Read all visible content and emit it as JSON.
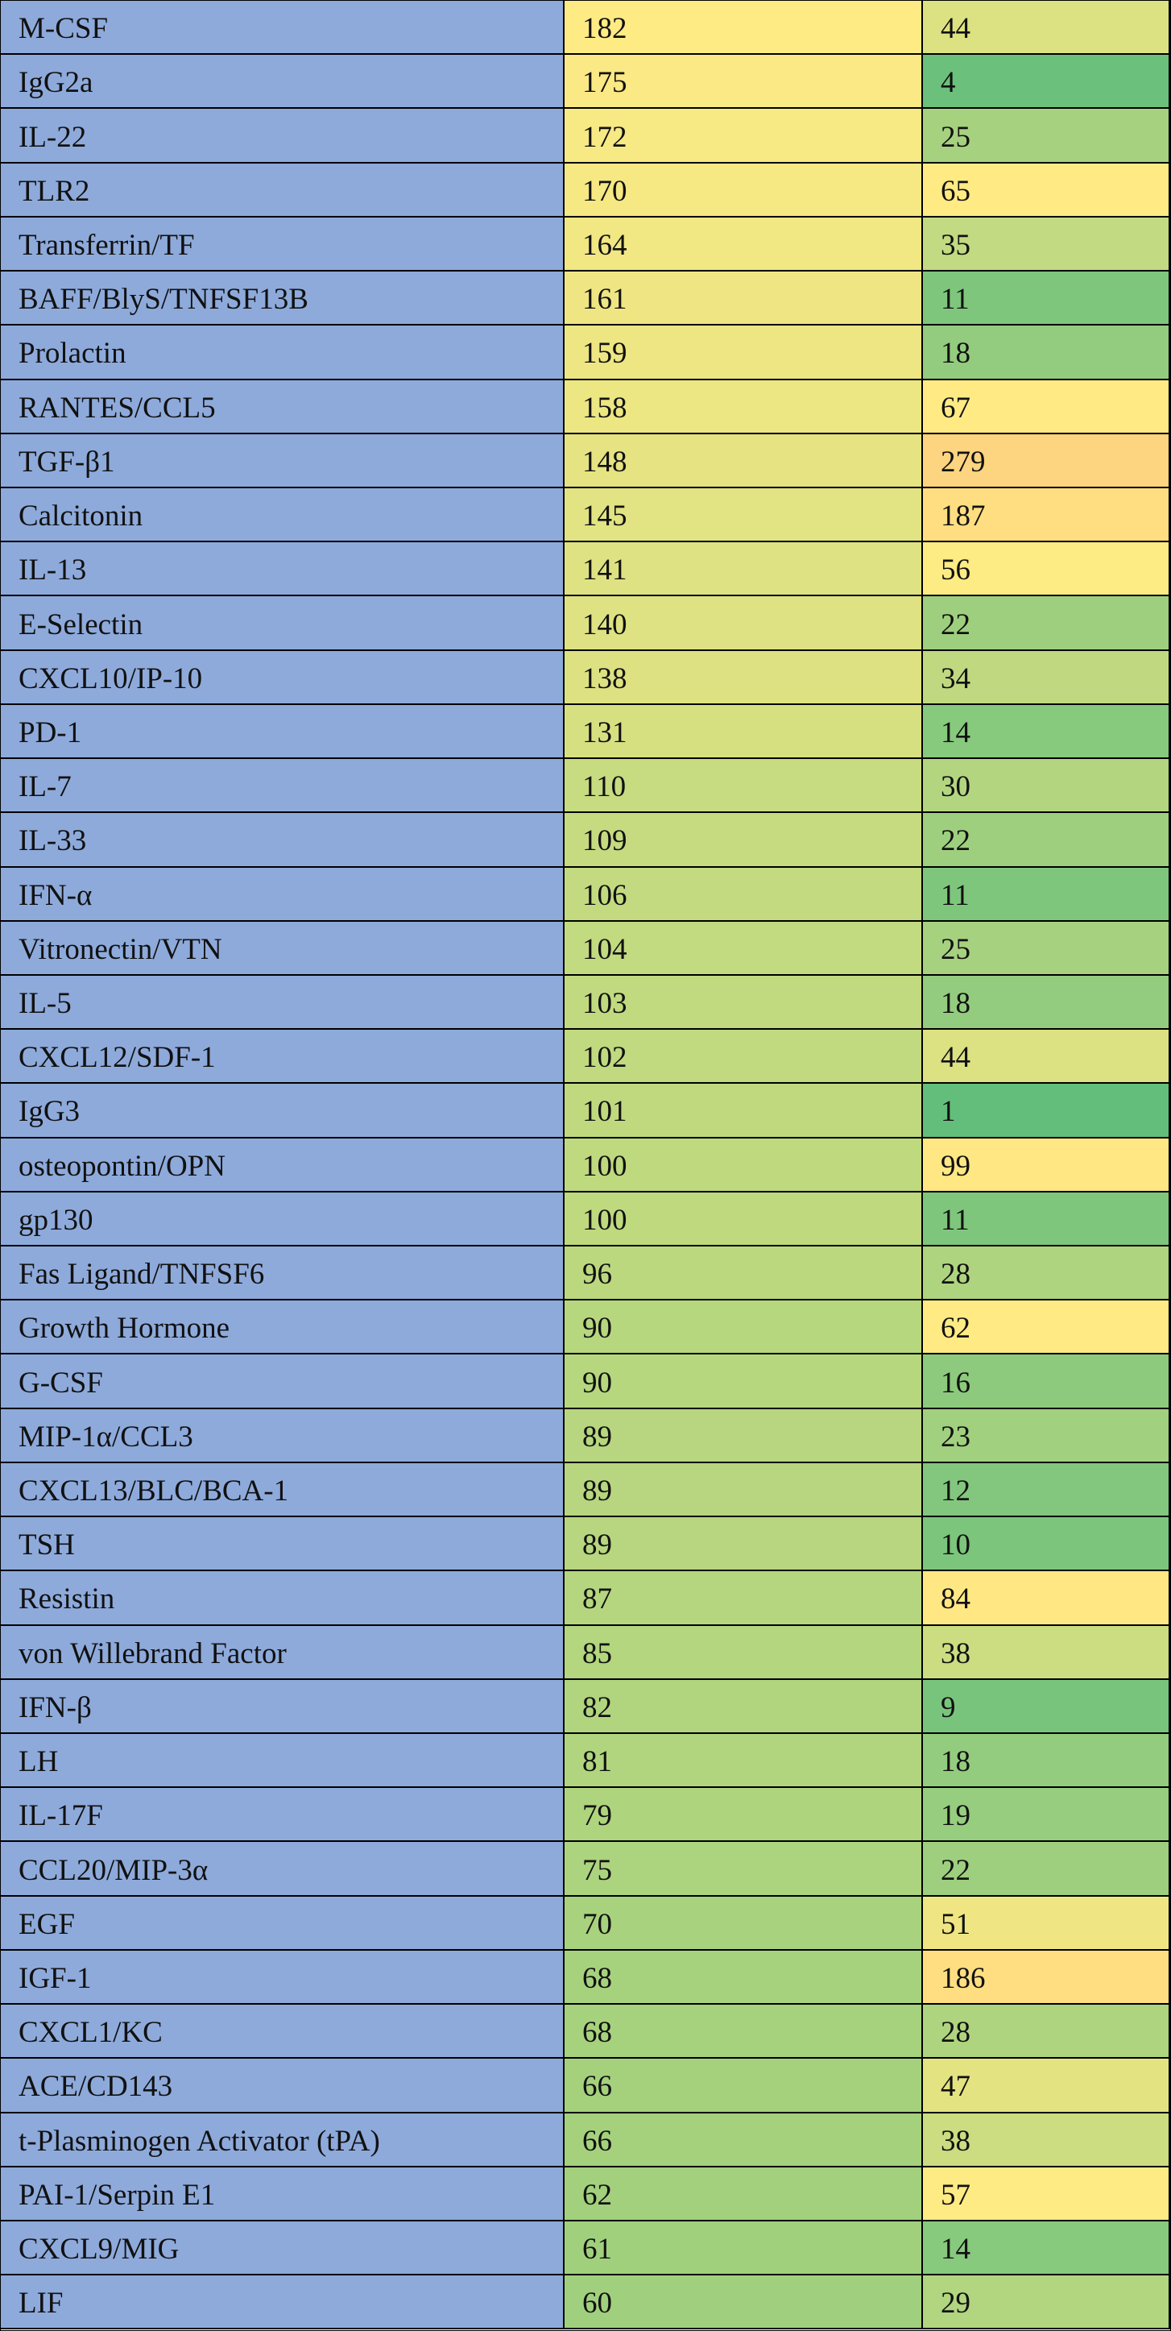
{
  "table": {
    "rows": [
      [
        "M-CSF",
        182,
        44
      ],
      [
        "IgG2a",
        175,
        4
      ],
      [
        "IL-22",
        172,
        25
      ],
      [
        "TLR2",
        170,
        65
      ],
      [
        "Transferrin/TF",
        164,
        35
      ],
      [
        "BAFF/BlyS/TNFSF13B",
        161,
        11
      ],
      [
        "Prolactin",
        159,
        18
      ],
      [
        "RANTES/CCL5",
        158,
        67
      ],
      [
        "TGF-β1",
        148,
        279
      ],
      [
        "Calcitonin",
        145,
        187
      ],
      [
        "IL-13",
        141,
        56
      ],
      [
        "E-Selectin",
        140,
        22
      ],
      [
        "CXCL10/IP-10",
        138,
        34
      ],
      [
        "PD-1",
        131,
        14
      ],
      [
        "IL-7",
        110,
        30
      ],
      [
        "IL-33",
        109,
        22
      ],
      [
        "IFN-α",
        106,
        11
      ],
      [
        "Vitronectin/VTN",
        104,
        25
      ],
      [
        "IL-5",
        103,
        18
      ],
      [
        "CXCL12/SDF-1",
        102,
        44
      ],
      [
        "IgG3",
        101,
        1
      ],
      [
        "osteopontin/OPN",
        100,
        99
      ],
      [
        "gp130",
        100,
        11
      ],
      [
        "Fas Ligand/TNFSF6",
        96,
        28
      ],
      [
        "Growth Hormone",
        90,
        62
      ],
      [
        "G-CSF",
        90,
        16
      ],
      [
        "MIP-1α/CCL3",
        89,
        23
      ],
      [
        "CXCL13/BLC/BCA-1",
        89,
        12
      ],
      [
        "TSH",
        89,
        10
      ],
      [
        "Resistin",
        87,
        84
      ],
      [
        "von Willebrand Factor",
        85,
        38
      ],
      [
        "IFN-β",
        82,
        9
      ],
      [
        "LH",
        81,
        18
      ],
      [
        "IL-17F",
        79,
        19
      ],
      [
        "CCL20/MIP-3α",
        75,
        22
      ],
      [
        "EGF",
        70,
        51
      ],
      [
        "IGF-1",
        68,
        186
      ],
      [
        "CXCL1/KC",
        68,
        28
      ],
      [
        "ACE/CD143",
        66,
        47
      ],
      [
        "t-Plasminogen Activator (tPA)",
        66,
        38
      ],
      [
        "PAI-1/Serpin E1",
        62,
        57
      ],
      [
        "CXCL9/MIG",
        61,
        14
      ],
      [
        "LIF",
        60,
        29
      ]
    ]
  }
}
